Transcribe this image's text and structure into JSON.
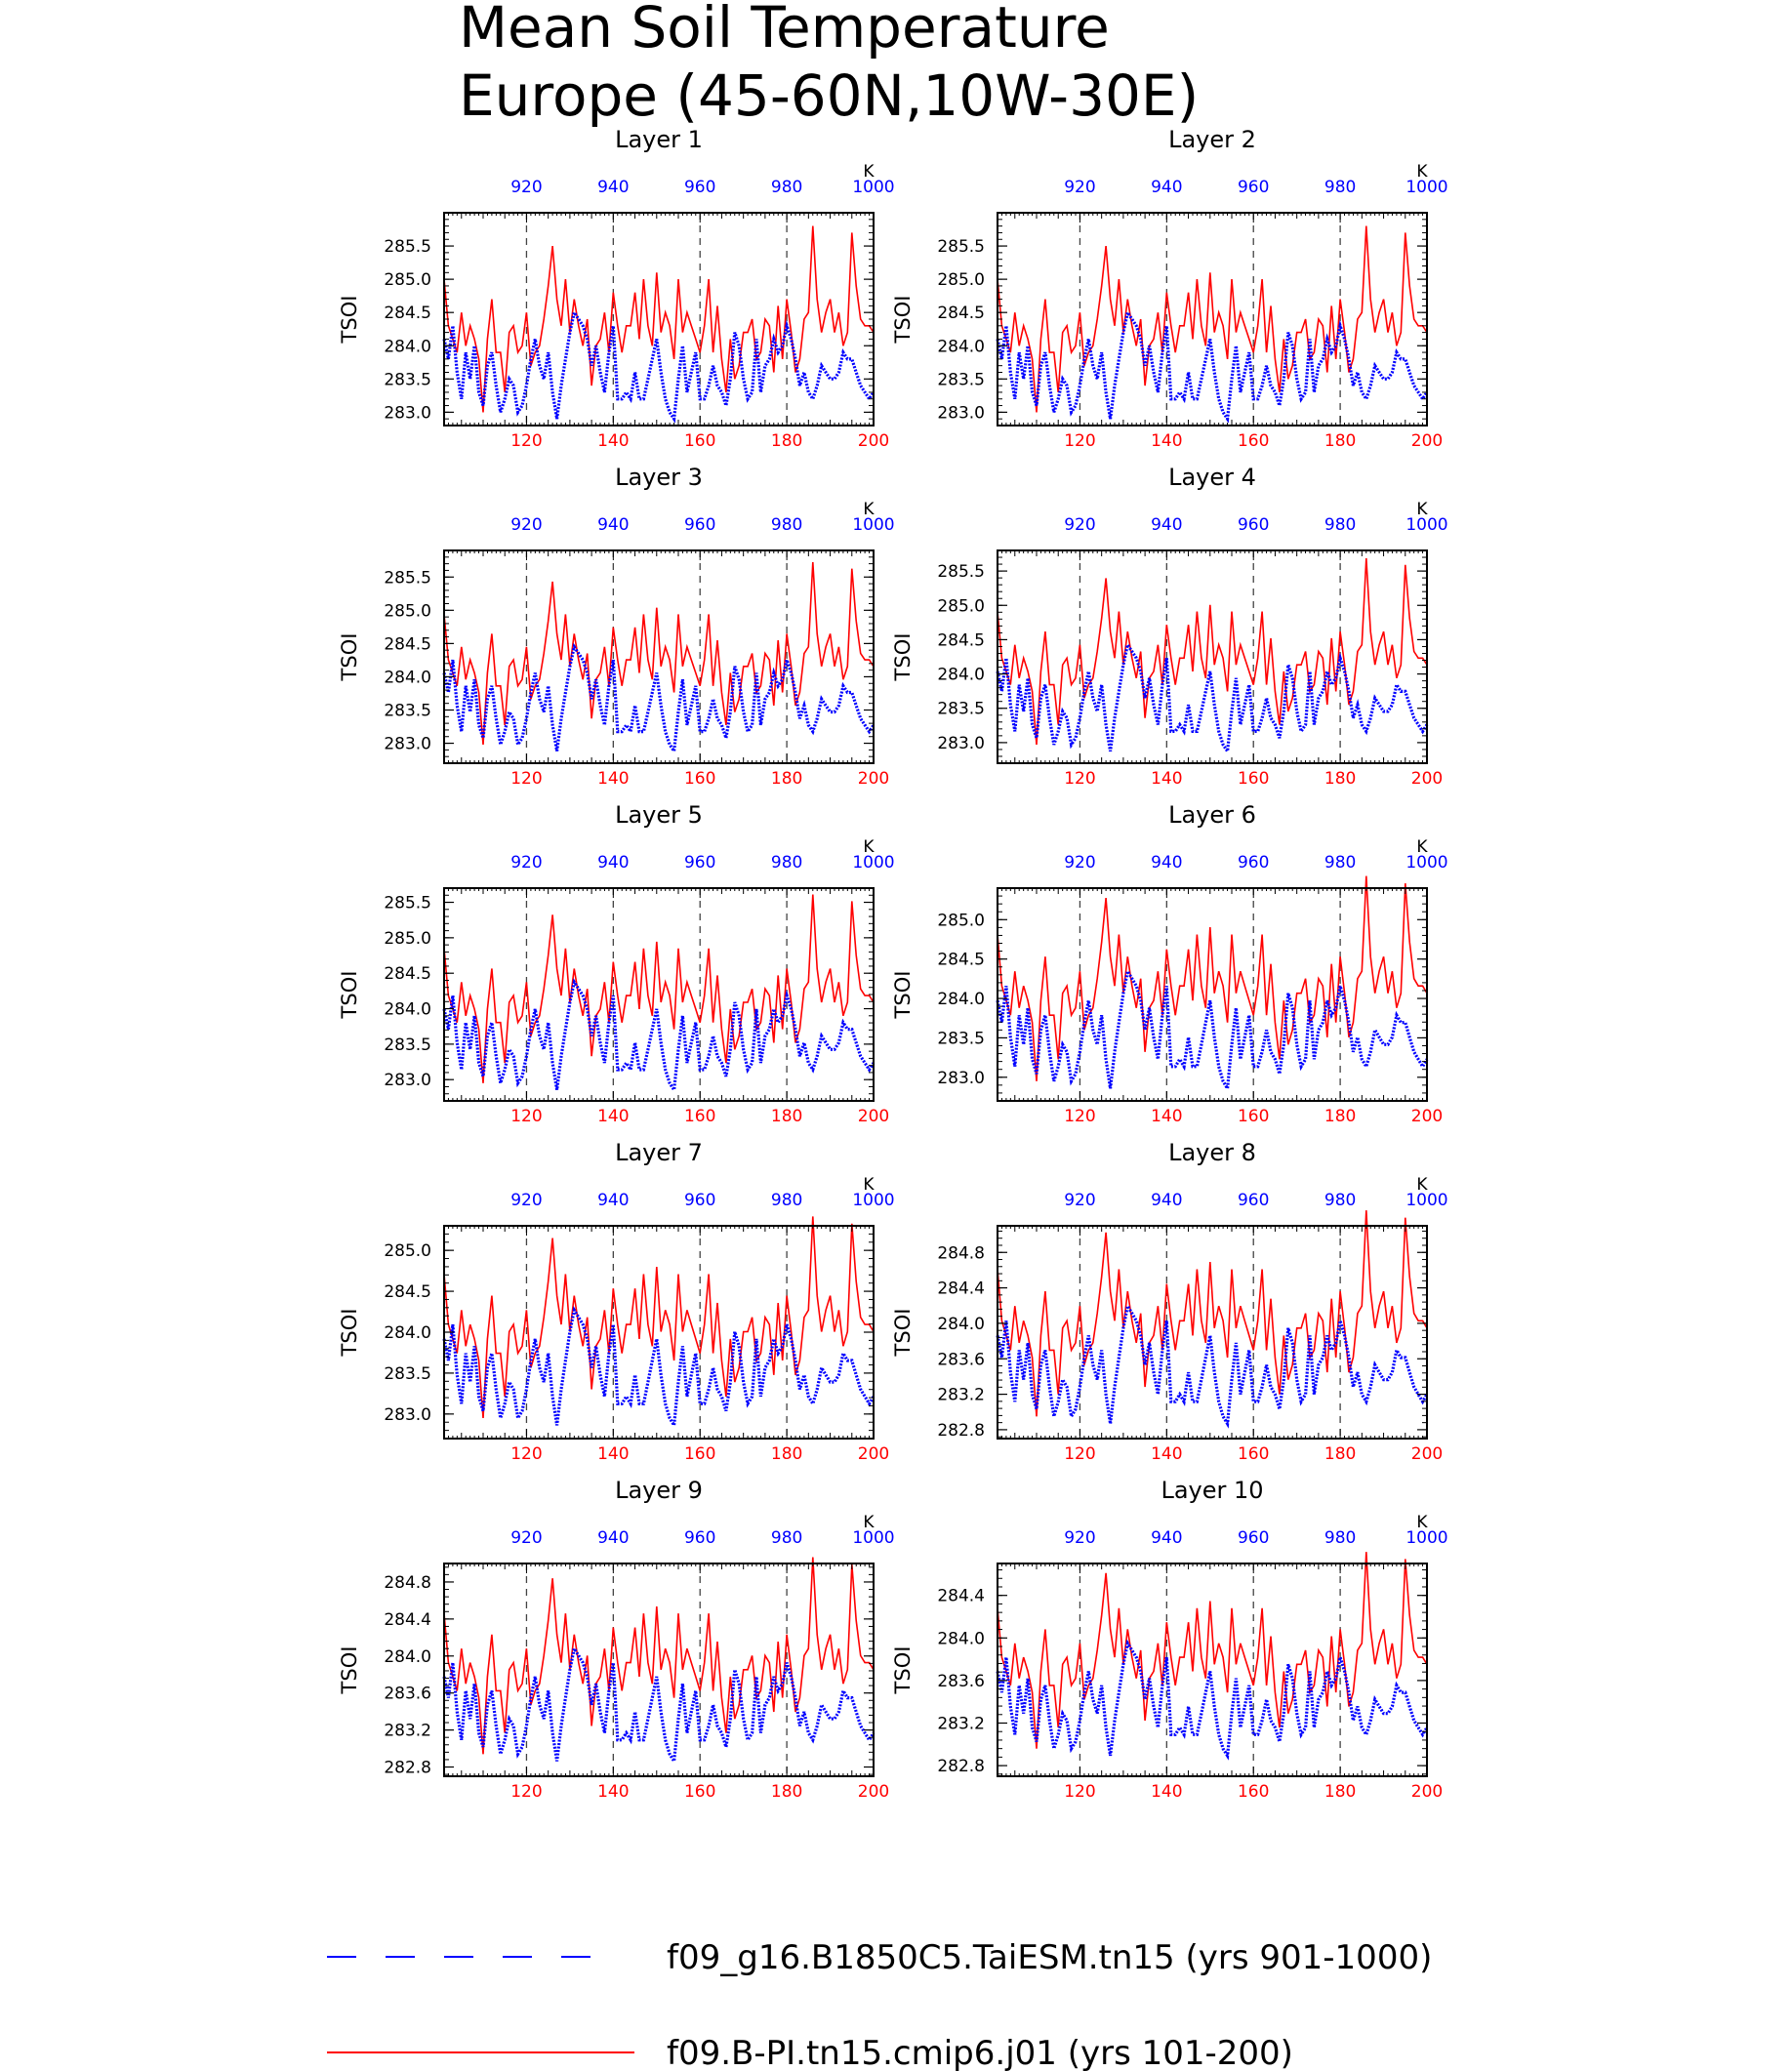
{
  "title": {
    "line1": "Mean Soil Temperature",
    "line2": "Europe (45-60N,10W-30E)"
  },
  "colors": {
    "series1": "#0000ff",
    "series2": "#ff0000",
    "axis": "#000000",
    "guide": "#444444"
  },
  "legend": {
    "placement": "bottom",
    "items": [
      {
        "label": "f09_g16.B1850C5.TaiESM.tn15 (yrs 901-1000)",
        "color": "#0000ff",
        "style": "dashed"
      },
      {
        "label": "f09.B-PI.tn15.cmip6.j01 (yrs 101-200)",
        "color": "#ff0000",
        "style": "solid"
      }
    ]
  },
  "chart_data": {
    "type": "line",
    "ylabel": "TSOI",
    "top_axis_label": "K",
    "bottom_xlim": [
      101,
      200
    ],
    "top_xlim": [
      901,
      1000
    ],
    "bottom_ticks": [
      "120",
      "140",
      "160",
      "180",
      "200"
    ],
    "top_ticks": [
      "920",
      "940",
      "960",
      "980",
      "1000"
    ],
    "vertical_guides": [
      120,
      140,
      160,
      180
    ],
    "base_series": {
      "blue": [
        284.1,
        283.8,
        284.3,
        283.6,
        283.2,
        283.9,
        283.5,
        284.0,
        283.3,
        283.1,
        283.7,
        283.9,
        283.4,
        283.0,
        283.2,
        283.5,
        283.4,
        283.0,
        283.1,
        283.4,
        283.8,
        284.1,
        283.7,
        283.5,
        283.9,
        283.3,
        282.9,
        283.4,
        283.8,
        284.2,
        284.5,
        284.4,
        284.3,
        284.1,
        283.7,
        284.0,
        283.6,
        283.3,
        283.9,
        284.3,
        283.2,
        283.2,
        283.3,
        283.2,
        283.6,
        283.2,
        283.2,
        283.5,
        283.8,
        284.1,
        283.6,
        283.2,
        283.0,
        282.9,
        283.5,
        284.0,
        283.3,
        283.6,
        283.9,
        283.2,
        283.2,
        283.4,
        283.7,
        283.4,
        283.3,
        283.1,
        283.5,
        284.2,
        284.0,
        283.5,
        283.2,
        283.3,
        284.1,
        283.3,
        283.7,
        283.8,
        284.1,
        283.9,
        284.0,
        284.3,
        284.1,
        283.8,
        283.4,
        283.6,
        283.3,
        283.2,
        283.4,
        283.7,
        283.6,
        283.5,
        283.5,
        283.6,
        283.9,
        283.8,
        283.8,
        283.6,
        283.4,
        283.3,
        283.2,
        283.3
      ],
      "red": [
        285.0,
        284.3,
        284.1,
        283.9,
        284.5,
        284.0,
        284.3,
        284.1,
        283.8,
        283.0,
        284.1,
        284.7,
        283.9,
        283.9,
        283.3,
        284.2,
        284.3,
        283.9,
        284.0,
        284.5,
        283.7,
        283.9,
        284.0,
        284.4,
        284.9,
        285.5,
        284.7,
        284.3,
        285.0,
        284.2,
        284.7,
        284.3,
        284.0,
        284.4,
        283.4,
        284.0,
        284.1,
        284.5,
        283.9,
        284.8,
        284.3,
        283.9,
        284.3,
        284.3,
        284.8,
        284.1,
        285.0,
        284.3,
        284.0,
        285.1,
        284.2,
        284.5,
        284.3,
        283.8,
        285.0,
        284.2,
        284.5,
        284.3,
        284.1,
        283.9,
        284.3,
        285.0,
        283.9,
        284.6,
        283.8,
        283.3,
        284.1,
        283.5,
        283.7,
        284.2,
        284.2,
        284.4,
        283.8,
        283.9,
        284.4,
        284.3,
        283.6,
        284.6,
        283.8,
        284.7,
        284.2,
        283.6,
        283.8,
        284.4,
        284.5,
        285.8,
        284.7,
        284.2,
        284.5,
        284.7,
        284.2,
        284.5,
        284.0,
        284.2,
        285.7,
        284.9,
        284.4,
        284.3,
        284.3,
        284.2
      ]
    },
    "panels": [
      {
        "title": "Layer 1",
        "ylim": [
          282.8,
          286.0
        ],
        "yticks": [
          "283.0",
          "283.5",
          "284.0",
          "284.5",
          "285.0",
          "285.5"
        ],
        "offset": 0.0,
        "scale": 1.0
      },
      {
        "title": "Layer 2",
        "ylim": [
          282.8,
          286.0
        ],
        "yticks": [
          "283.0",
          "283.5",
          "284.0",
          "284.5",
          "285.0",
          "285.5"
        ],
        "offset": 0.0,
        "scale": 1.0
      },
      {
        "title": "Layer 3",
        "ylim": [
          282.7,
          285.9
        ],
        "yticks": [
          "283.0",
          "283.5",
          "284.0",
          "284.5",
          "285.0",
          "285.5"
        ],
        "offset": -0.04,
        "scale": 0.98
      },
      {
        "title": "Layer 4",
        "ylim": [
          282.7,
          285.8
        ],
        "yticks": [
          "283.0",
          "283.5",
          "284.0",
          "284.5",
          "285.0",
          "285.5"
        ],
        "offset": -0.06,
        "scale": 0.97
      },
      {
        "title": "Layer 5",
        "ylim": [
          282.7,
          285.7
        ],
        "yticks": [
          "283.0",
          "283.5",
          "284.0",
          "284.5",
          "285.0",
          "285.5"
        ],
        "offset": -0.1,
        "scale": 0.95
      },
      {
        "title": "Layer 6",
        "ylim": [
          282.7,
          285.4
        ],
        "yticks": [
          "283.0",
          "283.5",
          "284.0",
          "284.5",
          "285.0"
        ],
        "offset": -0.12,
        "scale": 0.93
      },
      {
        "title": "Layer 7",
        "ylim": [
          282.7,
          285.3
        ],
        "yticks": [
          "283.0",
          "283.5",
          "284.0",
          "284.5",
          "285.0"
        ],
        "offset": -0.17,
        "scale": 0.88
      },
      {
        "title": "Layer 8",
        "ylim": [
          282.7,
          285.1
        ],
        "yticks": [
          "282.8",
          "283.2",
          "283.6",
          "284.0",
          "284.4",
          "284.8"
        ],
        "offset": -0.22,
        "scale": 0.83
      },
      {
        "title": "Layer 9",
        "ylim": [
          282.7,
          285.0
        ],
        "yticks": [
          "282.8",
          "283.2",
          "283.6",
          "284.0",
          "284.4",
          "284.8"
        ],
        "offset": -0.3,
        "scale": 0.76
      },
      {
        "title": "Layer 10",
        "ylim": [
          282.7,
          284.7
        ],
        "yticks": [
          "282.8",
          "283.2",
          "283.6",
          "284.0",
          "284.4"
        ],
        "offset": -0.38,
        "scale": 0.66
      }
    ]
  }
}
